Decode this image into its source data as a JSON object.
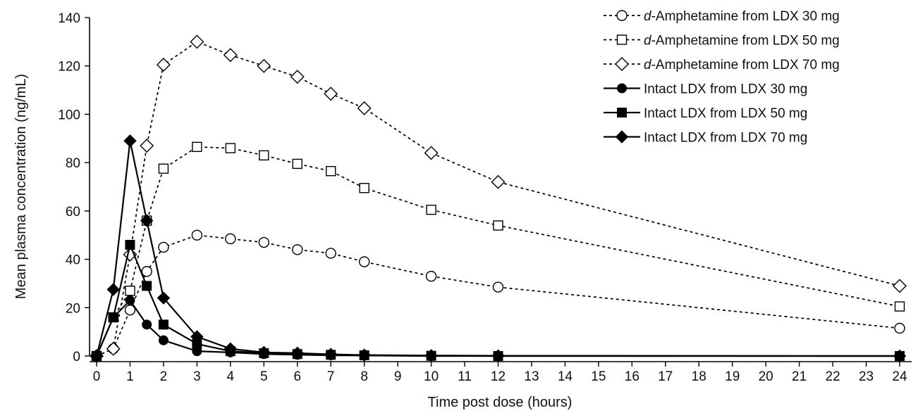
{
  "chart_data": {
    "type": "line",
    "xlabel": "Time post dose (hours)",
    "ylabel": "Mean plasma concentration (ng/mL)",
    "xlim": [
      0,
      24
    ],
    "ylim": [
      0,
      140
    ],
    "x_ticks": [
      0,
      1,
      2,
      3,
      4,
      5,
      6,
      7,
      8,
      9,
      10,
      11,
      12,
      13,
      14,
      15,
      16,
      17,
      18,
      19,
      20,
      21,
      22,
      23,
      24
    ],
    "y_ticks": [
      0,
      20,
      40,
      60,
      80,
      100,
      120,
      140
    ],
    "grid": false,
    "legend_position": "top-right",
    "series": [
      {
        "name": "d-Amphetamine from LDX 30 mg",
        "name_prefix": "d",
        "name_suffix": "-Amphetamine from LDX 30 mg",
        "line": "dashed",
        "marker": "open-circle",
        "x": [
          0,
          0.5,
          1,
          1.5,
          2,
          3,
          4,
          5,
          6,
          7,
          8,
          10,
          12,
          24
        ],
        "y": [
          0,
          3,
          19,
          35,
          45,
          50,
          48.5,
          47,
          44,
          42.5,
          39,
          33,
          28.5,
          11.5
        ]
      },
      {
        "name": "d-Amphetamine from LDX 50 mg",
        "name_prefix": "d",
        "name_suffix": "-Amphetamine from LDX 50 mg",
        "line": "dashed",
        "marker": "open-square",
        "x": [
          0,
          0.5,
          1,
          1.5,
          2,
          3,
          4,
          5,
          6,
          7,
          8,
          10,
          12,
          24
        ],
        "y": [
          0,
          16,
          27,
          56,
          77.5,
          86.5,
          86,
          83,
          79.5,
          76.5,
          69.5,
          60.5,
          54,
          20.5
        ]
      },
      {
        "name": "d-Amphetamine from LDX 70 mg",
        "name_prefix": "d",
        "name_suffix": "-Amphetamine from LDX 70 mg",
        "line": "dashed",
        "marker": "open-diamond",
        "x": [
          0,
          0.5,
          1,
          1.5,
          2,
          3,
          4,
          5,
          6,
          7,
          8,
          10,
          12,
          24
        ],
        "y": [
          0,
          3,
          42,
          87,
          120.5,
          130,
          124.5,
          120,
          115.5,
          108.5,
          102.5,
          84,
          72,
          29
        ]
      },
      {
        "name": "Intact LDX from LDX 30 mg",
        "line": "solid",
        "marker": "filled-circle",
        "x": [
          0,
          0.5,
          1,
          1.5,
          2,
          3,
          4,
          5,
          6,
          7,
          8,
          10,
          12,
          24
        ],
        "y": [
          0,
          16,
          23,
          13,
          6.5,
          2,
          1.5,
          0.8,
          0.5,
          0.3,
          0.2,
          0,
          0,
          0
        ]
      },
      {
        "name": "Intact LDX from LDX 50 mg",
        "line": "solid",
        "marker": "filled-square",
        "x": [
          0,
          0.5,
          1,
          1.5,
          2,
          3,
          4,
          5,
          6,
          7,
          8,
          10,
          12,
          24
        ],
        "y": [
          0,
          16,
          46,
          29,
          13,
          5,
          2,
          1.2,
          0.8,
          0.5,
          0.3,
          0.1,
          0,
          0
        ]
      },
      {
        "name": "Intact LDX from LDX 70 mg",
        "line": "solid",
        "marker": "filled-diamond",
        "x": [
          0,
          0.5,
          1,
          1.5,
          2,
          3,
          4,
          5,
          6,
          7,
          8,
          10,
          12,
          24
        ],
        "y": [
          0,
          27.5,
          89,
          56,
          24,
          8,
          3,
          1.5,
          1.2,
          0.7,
          0.4,
          0.2,
          0.1,
          0
        ]
      }
    ]
  }
}
